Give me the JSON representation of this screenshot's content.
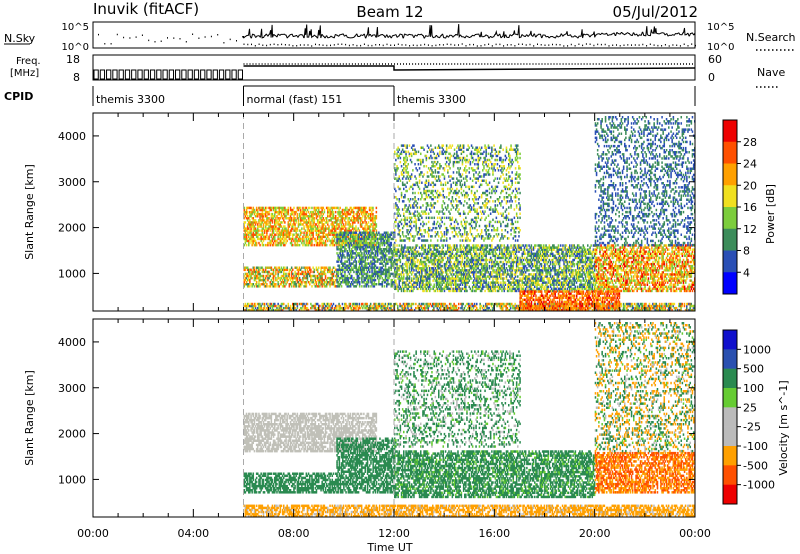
{
  "header": {
    "station": "Inuvik (fitACF)",
    "beam": "Beam 12",
    "date": "05/Jul/2012"
  },
  "panels": {
    "nsky": {
      "label": "N.Sky",
      "tick_top": "10^5",
      "tick_bottom": "10^0",
      "right_label": "N.Search",
      "right_tick_top": "10^5",
      "right_tick_bottom": "10^0"
    },
    "freq": {
      "label_line1": "Freq.",
      "label_line2": "[MHz]",
      "tick_top": "18",
      "tick_bottom": "8",
      "right_label": "Nave",
      "right_tick_top": "60",
      "right_tick_bottom": "0"
    },
    "cpid": {
      "label": "CPID",
      "modes": [
        {
          "name": "themis 3300",
          "start": 0,
          "end": 6
        },
        {
          "name": "normal (fast) 151",
          "start": 6,
          "end": 12
        },
        {
          "name": "themis 3300",
          "start": 12,
          "end": 24
        }
      ]
    }
  },
  "colors": {
    "power": [
      "#0000ff",
      "#2a4fb5",
      "#3c8c5a",
      "#7ccd3c",
      "#f0e020",
      "#ffa000",
      "#ff5000",
      "#ee0000"
    ],
    "velocity": [
      "#ee0000",
      "#ff5000",
      "#ffa000",
      "#bbbbbb",
      "#bbbbbb",
      "#66cc33",
      "#2a8a50",
      "#2a50b0",
      "#1010cc"
    ],
    "ground_scatter": "#c0c0b8"
  },
  "chart_data": [
    {
      "type": "heatmap",
      "name": "power",
      "ylabel": "Slant Range [km]",
      "ylim": [
        180,
        4500
      ],
      "y_ticks": [
        1000,
        2000,
        3000,
        4000
      ],
      "xlim": [
        0,
        24
      ],
      "colorbar": {
        "label": "Power [dB]",
        "ticks": [
          4,
          8,
          12,
          16,
          20,
          24,
          28
        ],
        "range": [
          0,
          32
        ]
      },
      "echo_regions": [
        {
          "t0": 6.0,
          "t1": 11.3,
          "r0": 1600,
          "r1": 2450,
          "level": [
            12,
            28
          ]
        },
        {
          "t0": 6.0,
          "t1": 9.7,
          "r0": 700,
          "r1": 1150,
          "level": [
            8,
            28
          ]
        },
        {
          "t0": 9.7,
          "t1": 12.0,
          "r0": 700,
          "r1": 1900,
          "level": [
            4,
            16
          ]
        },
        {
          "t0": 12.0,
          "t1": 20.0,
          "r0": 600,
          "r1": 1600,
          "level": [
            4,
            20
          ]
        },
        {
          "t0": 12.0,
          "t1": 17.0,
          "r0": 1700,
          "r1": 3800,
          "level": [
            4,
            20
          ]
        },
        {
          "t0": 20.0,
          "t1": 24.0,
          "r0": 600,
          "r1": 1600,
          "level": [
            12,
            30
          ]
        },
        {
          "t0": 6.0,
          "t1": 24.0,
          "r0": 180,
          "r1": 350,
          "level": [
            4,
            28
          ]
        },
        {
          "t0": 17.0,
          "t1": 21.0,
          "r0": 180,
          "r1": 600,
          "level": [
            20,
            30
          ]
        },
        {
          "t0": 20.0,
          "t1": 24.0,
          "r0": 1600,
          "r1": 4400,
          "level": [
            4,
            12
          ]
        }
      ]
    },
    {
      "type": "heatmap",
      "name": "velocity",
      "xlabel": "Time UT",
      "ylabel": "Slant Range [km]",
      "ylim": [
        180,
        4500
      ],
      "y_ticks": [
        1000,
        2000,
        3000,
        4000
      ],
      "xlim": [
        0,
        24
      ],
      "x_ticks": [
        0,
        4,
        8,
        12,
        16,
        20,
        24
      ],
      "x_tick_labels": [
        "00:00",
        "04:00",
        "08:00",
        "12:00",
        "16:00",
        "20:00",
        "00:00"
      ],
      "colorbar": {
        "label": "Velocity [m s^-1]",
        "ticks": [
          1000,
          500,
          100,
          25,
          -25,
          -100,
          -500,
          -1000
        ]
      },
      "echo_regions": [
        {
          "t0": 6.0,
          "t1": 11.3,
          "r0": 1600,
          "r1": 2450,
          "class": "ground"
        },
        {
          "t0": 6.0,
          "t1": 9.7,
          "r0": 700,
          "r1": 1150,
          "class": [
            100,
            500
          ]
        },
        {
          "t0": 9.7,
          "t1": 12.0,
          "r0": 700,
          "r1": 1900,
          "class": [
            100,
            500
          ]
        },
        {
          "t0": 12.0,
          "t1": 20.0,
          "r0": 600,
          "r1": 1600,
          "class": [
            25,
            500
          ]
        },
        {
          "t0": 12.0,
          "t1": 17.0,
          "r0": 1700,
          "r1": 3800,
          "class": [
            -100,
            500
          ]
        },
        {
          "t0": 20.0,
          "t1": 24.0,
          "r0": 700,
          "r1": 1600,
          "class": [
            -1000,
            -100
          ]
        },
        {
          "t0": 6.0,
          "t1": 24.0,
          "r0": 180,
          "r1": 450,
          "class": [
            -500,
            -25
          ]
        },
        {
          "t0": 20.0,
          "t1": 24.0,
          "r0": 1600,
          "r1": 4400,
          "class": [
            -500,
            500
          ]
        }
      ]
    }
  ]
}
